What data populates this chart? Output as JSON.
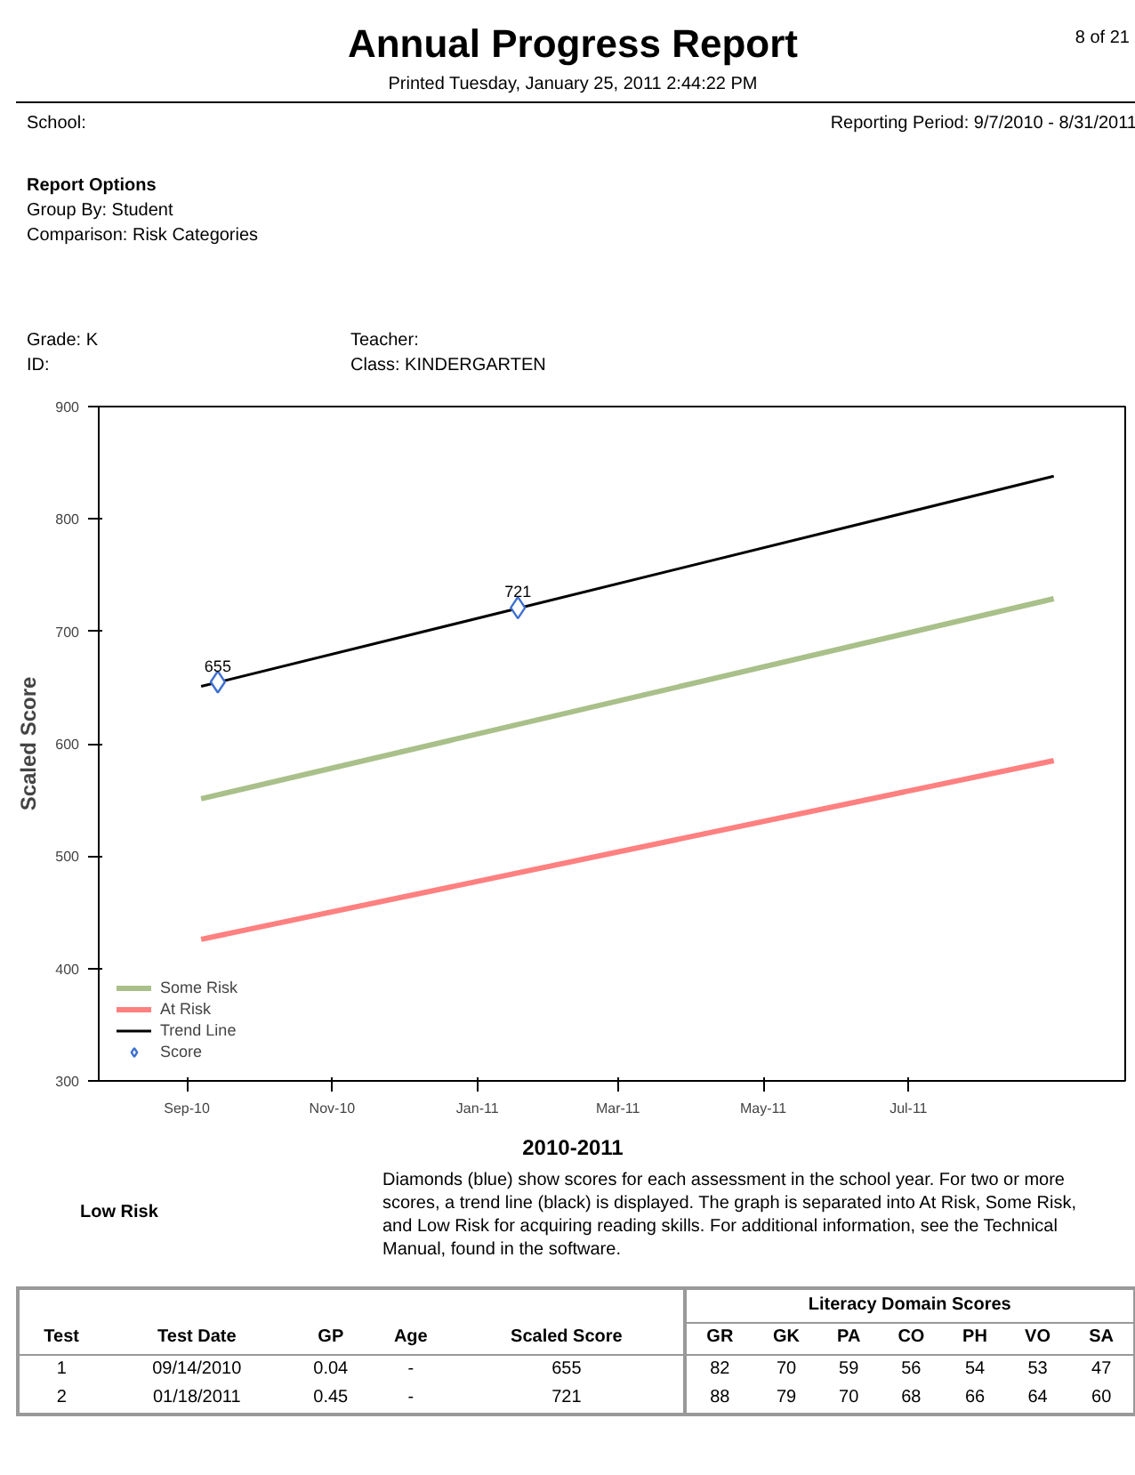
{
  "chart_data": {
    "type": "line",
    "title": "Annual Progress Report",
    "subtitle": "Printed Tuesday, January 25, 2011  2:44:22 PM",
    "ylabel": "Scaled Score",
    "annotations": [
      "8 of 21",
      "School:",
      "Reporting Period: 9/7/2010 - 8/31/2011",
      "Report Options",
      "Group By: Student",
      "Comparison: Risk Categories",
      "Grade: K",
      "ID:",
      "Teacher:",
      "Class: KINDERGARTEN",
      "2010-2011",
      "Low Risk",
      "Diamonds (blue) show scores for each assessment in the school year. For two or more scores, a trend line (black) is displayed. The graph is separated into At Risk, Some Risk, and Low Risk for acquiring reading skills. For additional information, see the Technical Manual, found in the software.",
      "Literacy Domain Scores",
      "Test\tTest Date\tGP\tAge\tScaled Score\tGR\tGK\tPA\tCO\tPH\tVO\tSA",
      "1\t09/14/2010\t0.04\t-\t655\t82\t70\t59\t56\t54\t53\t47",
      "2\t01/18/2011\t0.45\t-\t721\t88\t79\t70\t68\t66\t64\t60"
    ],
    "xlim": [
      "2010-07-26",
      "2011-09-30"
    ],
    "ylim": [
      300,
      900
    ],
    "xticks": [
      {
        "value": "2010-09-01",
        "label": "Sep-10"
      },
      {
        "value": "2010-11-01",
        "label": "Nov-10"
      },
      {
        "value": "2011-01-01",
        "label": "Jan-11"
      },
      {
        "value": "2011-03-01",
        "label": "Mar-11"
      },
      {
        "value": "2011-05-01",
        "label": "May-11"
      },
      {
        "value": "2011-07-01",
        "label": "Jul-11"
      }
    ],
    "yticks": [
      300,
      400,
      500,
      600,
      700,
      800,
      900
    ],
    "grid": false,
    "legend": "bottom left",
    "series": [
      {
        "name": "Some Risk",
        "color": "#a9c08a",
        "x": [
          "2010-09-07",
          "2011-08-31"
        ],
        "values": [
          551,
          729
        ]
      },
      {
        "name": "At Risk",
        "color": "#ff8080",
        "x": [
          "2010-09-07",
          "2011-08-31"
        ],
        "values": [
          426,
          585
        ]
      },
      {
        "name": "Trend Line",
        "color": "#000000",
        "x": [
          "2010-09-07",
          "2011-08-31"
        ],
        "values": [
          651,
          838
        ]
      },
      {
        "name": "Score",
        "type": "scatter",
        "marker": "diamond",
        "color": "#3d6fd0",
        "x": [
          "2010-09-14",
          "2011-01-18"
        ],
        "values": [
          655,
          721
        ],
        "value_labels": [
          "655",
          "721"
        ]
      }
    ]
  }
}
